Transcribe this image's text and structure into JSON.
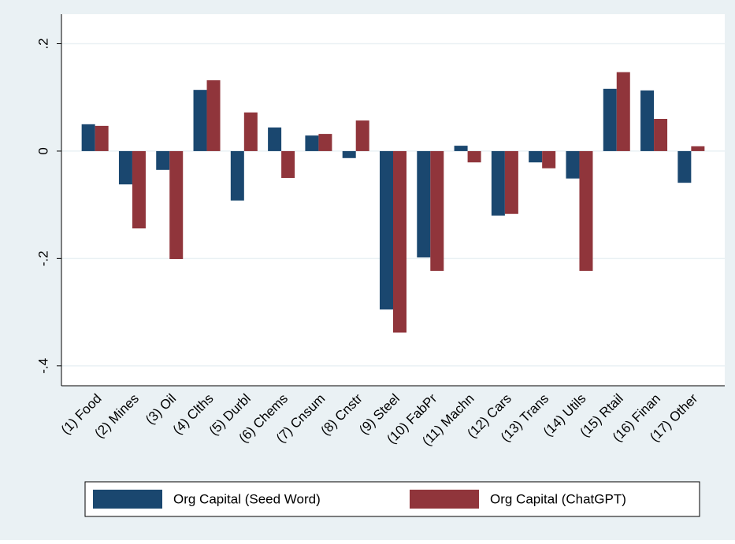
{
  "chart_data": {
    "type": "bar",
    "categories": [
      "(1) Food",
      "(2) Mines",
      "(3) Oil",
      "(4) Clths",
      "(5) Durbl",
      "(6) Chems",
      "(7) Cnsum",
      "(8) Cnstr",
      "(9) Steel",
      "(10) FabPr",
      "(11) Machn",
      "(12) Cars",
      "(13) Trans",
      "(14) Utils",
      "(15) Rtail",
      "(16) Finan",
      "(17) Other"
    ],
    "series": [
      {
        "name": "Org Capital (Seed Word)",
        "color": "#1a476f",
        "values": [
          0.05,
          -0.062,
          -0.035,
          0.114,
          -0.092,
          0.044,
          0.029,
          -0.013,
          -0.295,
          -0.198,
          0.01,
          -0.12,
          -0.021,
          -0.051,
          0.116,
          0.113,
          -0.059
        ]
      },
      {
        "name": "Org Capital (ChatGPT)",
        "color": "#90353b",
        "values": [
          0.047,
          -0.144,
          -0.201,
          0.132,
          0.072,
          -0.05,
          0.032,
          0.057,
          -0.338,
          -0.223,
          -0.021,
          -0.117,
          -0.032,
          -0.223,
          0.147,
          0.06,
          0.009
        ]
      }
    ],
    "ylim": [
      -0.437,
      0.255
    ],
    "yticks": [
      {
        "value": -0.4,
        "label": "-.4"
      },
      {
        "value": -0.2,
        "label": "-.2"
      },
      0,
      {
        "value": 0.2,
        "label": ".2"
      }
    ],
    "grid": true,
    "legend": "bottom"
  }
}
